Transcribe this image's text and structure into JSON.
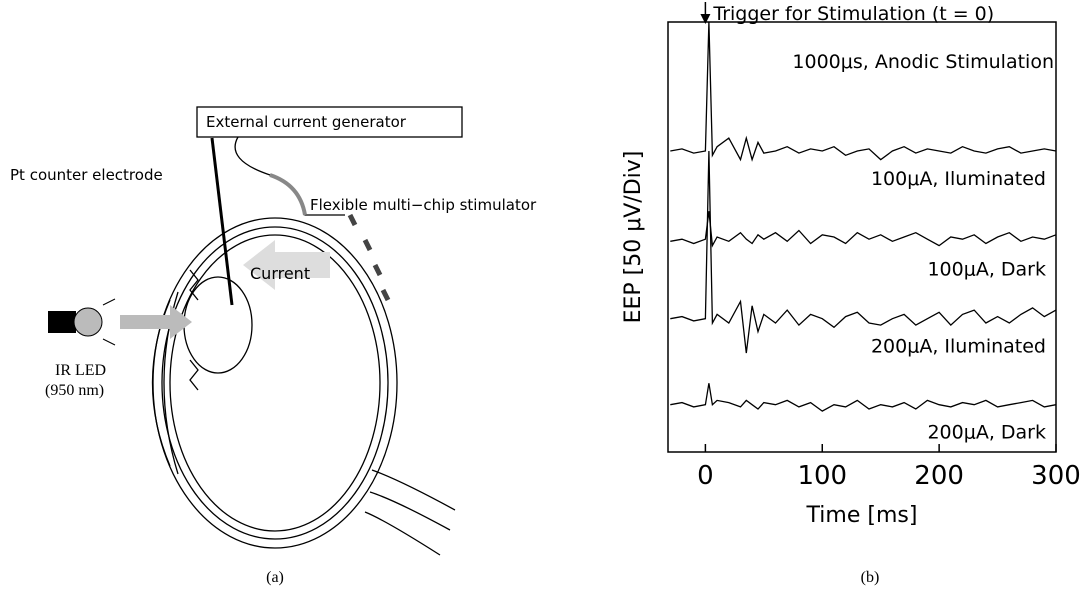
{
  "diagram": {
    "generator": "External current generator",
    "counter_electrode": "Pt counter electrode",
    "stimulator": "Flexible multi−chip stimulator",
    "current": "Current",
    "led": "IR LED",
    "wavelength": "(950 nm)"
  },
  "captions": [
    "(a)",
    "(b)"
  ],
  "chart_data": {
    "type": "line",
    "trigger": "Trigger for Stimulation (t = 0)",
    "annotation": "1000μs, Anodic Stimulation",
    "x_label": "Time [ms]",
    "y_label": "EEP [50 μV/Div]",
    "xlim": [
      -32,
      300
    ],
    "xticks": [
      0,
      100,
      200,
      300
    ],
    "ylim": [
      0,
      10
    ],
    "x": [
      -30,
      -20,
      -10,
      0,
      3,
      6,
      10,
      20,
      30,
      35,
      40,
      45,
      50,
      60,
      70,
      80,
      90,
      100,
      110,
      120,
      130,
      140,
      150,
      160,
      170,
      180,
      190,
      200,
      210,
      220,
      230,
      240,
      250,
      260,
      270,
      280,
      290,
      300
    ],
    "series": [
      {
        "name": "100μA, Iluminated",
        "color": "#000000",
        "values": [
          7.0,
          7.05,
          6.95,
          7.0,
          10,
          6.9,
          7.1,
          7.3,
          6.8,
          7.3,
          6.8,
          7.2,
          6.95,
          7.0,
          7.1,
          6.95,
          7.05,
          7.0,
          7.1,
          6.9,
          7.0,
          7.05,
          6.8,
          7.0,
          7.1,
          6.95,
          7.05,
          7.0,
          6.95,
          7.1,
          7.0,
          6.95,
          7.05,
          7.1,
          6.95,
          7.0,
          7.05,
          7.0
        ]
      },
      {
        "name": "100μA, Dark",
        "color": "#000000",
        "values": [
          4.9,
          4.95,
          4.85,
          4.95,
          5.6,
          4.8,
          5.0,
          4.9,
          5.1,
          4.95,
          4.85,
          5.05,
          4.95,
          5.1,
          4.9,
          5.15,
          4.85,
          5.05,
          5.0,
          4.85,
          5.1,
          4.95,
          5.05,
          4.9,
          5.0,
          5.1,
          4.95,
          4.8,
          5.0,
          4.95,
          5.05,
          4.85,
          5.0,
          5.1,
          4.9,
          5.0,
          4.95,
          5.05
        ]
      },
      {
        "name": "200μA, Iluminated",
        "color": "#000000",
        "values": [
          3.1,
          3.15,
          3.05,
          3.1,
          7.0,
          3.0,
          3.2,
          3.0,
          3.5,
          2.3,
          3.4,
          2.8,
          3.2,
          3.0,
          3.3,
          2.95,
          3.2,
          3.1,
          2.9,
          3.15,
          3.25,
          3.0,
          2.95,
          3.1,
          3.2,
          2.95,
          3.1,
          3.25,
          2.95,
          3.2,
          3.3,
          3.0,
          3.15,
          3.0,
          3.2,
          3.35,
          3.15,
          3.3
        ]
      },
      {
        "name": "200μA, Dark",
        "color": "#000000",
        "values": [
          1.1,
          1.15,
          1.05,
          1.1,
          1.6,
          1.1,
          1.2,
          1.15,
          1.05,
          1.2,
          1.1,
          1.0,
          1.15,
          1.1,
          1.2,
          1.05,
          1.15,
          0.95,
          1.1,
          1.05,
          1.2,
          1.0,
          1.1,
          1.05,
          1.15,
          1.0,
          1.2,
          1.1,
          1.05,
          1.15,
          1.1,
          1.2,
          1.05,
          1.1,
          1.15,
          1.2,
          1.05,
          1.1
        ]
      }
    ]
  }
}
